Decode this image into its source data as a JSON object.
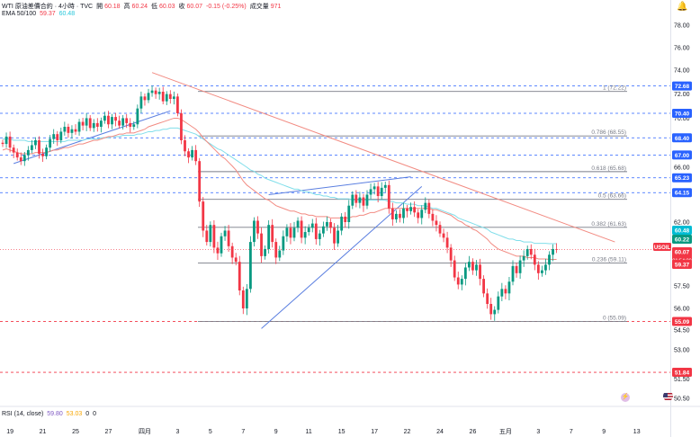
{
  "legend": {
    "symbol": "WTI 原油差價合約 · 4小時 · TVC",
    "open_label": "開",
    "open": "60.18",
    "high_label": "高",
    "high": "60.24",
    "low_label": "低",
    "low": "60.03",
    "close_label": "收",
    "close": "60.07",
    "change": "-0.15 (-0.25%)",
    "volume_label": "成交量",
    "volume": "971",
    "ema_label": "EMA 50/100",
    "ema50": "59.37",
    "ema100": "60.48",
    "rsi_label": "RSI (14, close)",
    "rsi": "59.80",
    "rsi_ma": "53.03",
    "rsi_extra1": "0",
    "rsi_extra2": "0"
  },
  "icons": {
    "bell": "bell-icon",
    "flag": "us-flag-icon",
    "ai": "ai-assistant-icon"
  },
  "colors": {
    "up": "#089981",
    "down": "#f23645",
    "ema50": "#f28b82",
    "ema100": "#80deea",
    "trend": "#5b7fe0",
    "blue_label": "#2962ff",
    "red_label": "#f23645"
  },
  "chart_data": {
    "type": "candlestick",
    "y_axis": {
      "min": 50.5,
      "max": 78.0,
      "ticks": [
        "78.00",
        "76.00",
        "74.00",
        "72.00",
        "70.00",
        "66.00",
        "64.00",
        "62.00",
        "57.50",
        "56.00",
        "54.50",
        "53.00",
        "51.50",
        "50.50"
      ]
    },
    "x_axis": {
      "ticks": [
        {
          "label": "19",
          "i": 2
        },
        {
          "label": "21",
          "i": 11
        },
        {
          "label": "25",
          "i": 20
        },
        {
          "label": "27",
          "i": 29
        },
        {
          "label": "四月",
          "i": 39
        },
        {
          "label": "3",
          "i": 48
        },
        {
          "label": "5",
          "i": 57
        },
        {
          "label": "7",
          "i": 66
        },
        {
          "label": "9",
          "i": 75
        },
        {
          "label": "11",
          "i": 84
        },
        {
          "label": "15",
          "i": 93
        },
        {
          "label": "17",
          "i": 102
        },
        {
          "label": "22",
          "i": 111
        },
        {
          "label": "24",
          "i": 120
        },
        {
          "label": "26",
          "i": 129
        },
        {
          "label": "五月",
          "i": 138
        },
        {
          "label": "3",
          "i": 147
        },
        {
          "label": "7",
          "i": 156
        },
        {
          "label": "9",
          "i": 165
        },
        {
          "label": "13",
          "i": 174
        }
      ]
    },
    "closes": [
      67.9,
      68.5,
      67.6,
      67.2,
      66.8,
      66.5,
      67.0,
      67.4,
      67.8,
      68.2,
      67.1,
      66.9,
      67.6,
      68.3,
      68.7,
      68.2,
      68.9,
      69.3,
      68.8,
      69.1,
      68.9,
      69.7,
      69.4,
      70.0,
      69.2,
      69.6,
      69.3,
      69.8,
      70.2,
      69.5,
      70.1,
      69.8,
      69.4,
      70.0,
      69.6,
      69.3,
      69.5,
      70.8,
      71.8,
      71.5,
      72.1,
      72.3,
      72.0,
      72.2,
      71.4,
      72.0,
      71.6,
      71.8,
      70.4,
      68.2,
      67.3,
      66.8,
      67.4,
      66.5,
      63.5,
      61.4,
      60.6,
      61.8,
      60.2,
      59.8,
      61.0,
      61.4,
      60.3,
      59.5,
      59.2,
      57.2,
      56.0,
      57.3,
      60.6,
      62.1,
      61.2,
      59.6,
      60.1,
      61.8,
      60.6,
      59.5,
      60.0,
      61.0,
      61.6,
      60.9,
      61.6,
      62.1,
      60.9,
      61.3,
      61.6,
      61.9,
      60.8,
      61.2,
      61.7,
      62.0,
      61.6,
      60.5,
      61.4,
      62.4,
      62.0,
      63.2,
      64.0,
      63.4,
      63.8,
      63.2,
      64.0,
      64.4,
      64.6,
      63.9,
      64.5,
      64.7,
      63.0,
      62.2,
      62.6,
      62.3,
      63.0,
      62.8,
      63.1,
      62.7,
      62.3,
      62.9,
      63.4,
      62.6,
      62.1,
      61.8,
      61.2,
      60.9,
      60.2,
      59.3,
      58.1,
      57.6,
      58.0,
      58.8,
      59.2,
      58.6,
      59.0,
      58.0,
      57.0,
      56.3,
      55.6,
      55.9,
      56.8,
      57.3,
      57.0,
      57.8,
      58.9,
      58.4,
      59.3,
      59.6,
      60.1,
      59.7,
      59.0,
      58.4,
      58.6,
      59.0,
      59.7,
      60.1,
      60.07
    ],
    "ema50": [
      67.4,
      67.5,
      67.4,
      67.3,
      67.2,
      67.1,
      67.1,
      67.1,
      67.1,
      67.2,
      67.2,
      67.2,
      67.2,
      67.3,
      67.4,
      67.4,
      67.5,
      67.6,
      67.6,
      67.7,
      67.8,
      67.9,
      67.9,
      68.0,
      68.1,
      68.2,
      68.2,
      68.3,
      68.4,
      68.5,
      68.5,
      68.6,
      68.7,
      68.7,
      68.8,
      68.8,
      68.8,
      68.9,
      69.0,
      69.1,
      69.3,
      69.4,
      69.5,
      69.6,
      69.7,
      69.8,
      69.9,
      70.0,
      70.0,
      69.9,
      69.7,
      69.5,
      69.3,
      69.1,
      68.8,
      68.4,
      68.1,
      67.8,
      67.5,
      67.2,
      66.9,
      66.7,
      66.4,
      66.1,
      65.8,
      65.4,
      65.0,
      64.7,
      64.5,
      64.3,
      64.1,
      63.9,
      63.7,
      63.6,
      63.4,
      63.2,
      63.1,
      63.0,
      62.9,
      62.8,
      62.8,
      62.7,
      62.6,
      62.6,
      62.5,
      62.5,
      62.4,
      62.4,
      62.4,
      62.4,
      62.3,
      62.3,
      62.3,
      62.3,
      62.3,
      62.3,
      62.4,
      62.4,
      62.5,
      62.5,
      62.6,
      62.7,
      62.7,
      62.8,
      62.9,
      63.0,
      63.0,
      63.0,
      63.0,
      63.0,
      63.0,
      63.0,
      63.0,
      63.0,
      63.0,
      63.0,
      63.0,
      63.0,
      62.9,
      62.9,
      62.8,
      62.7,
      62.6,
      62.5,
      62.3,
      62.1,
      62.0,
      61.8,
      61.7,
      61.5,
      61.4,
      61.2,
      61.0,
      60.8,
      60.5,
      60.3,
      60.1,
      60.0,
      59.9,
      59.8,
      59.7,
      59.6,
      59.6,
      59.6,
      59.5,
      59.5,
      59.5,
      59.4,
      59.4,
      59.4,
      59.37,
      59.37,
      59.37
    ],
    "ema100": [
      68.3,
      68.3,
      68.3,
      68.2,
      68.2,
      68.2,
      68.2,
      68.1,
      68.1,
      68.1,
      68.1,
      68.1,
      68.1,
      68.1,
      68.1,
      68.1,
      68.1,
      68.1,
      68.2,
      68.2,
      68.2,
      68.2,
      68.2,
      68.3,
      68.3,
      68.3,
      68.3,
      68.4,
      68.4,
      68.4,
      68.5,
      68.5,
      68.5,
      68.6,
      68.6,
      68.6,
      68.6,
      68.7,
      68.7,
      68.8,
      68.9,
      68.9,
      69.0,
      69.0,
      69.1,
      69.1,
      69.2,
      69.2,
      69.2,
      69.1,
      69.0,
      68.9,
      68.8,
      68.7,
      68.5,
      68.3,
      68.1,
      67.9,
      67.7,
      67.5,
      67.4,
      67.2,
      67.0,
      66.8,
      66.6,
      66.4,
      66.2,
      66.0,
      65.8,
      65.7,
      65.5,
      65.4,
      65.2,
      65.1,
      65.0,
      64.9,
      64.8,
      64.7,
      64.6,
      64.5,
      64.4,
      64.4,
      64.3,
      64.2,
      64.2,
      64.1,
      64.0,
      64.0,
      63.9,
      63.9,
      63.8,
      63.8,
      63.7,
      63.7,
      63.7,
      63.7,
      63.6,
      63.6,
      63.6,
      63.6,
      63.6,
      63.6,
      63.6,
      63.6,
      63.6,
      63.6,
      63.5,
      63.5,
      63.4,
      63.4,
      63.4,
      63.3,
      63.3,
      63.3,
      63.2,
      63.2,
      63.2,
      63.1,
      63.0,
      63.0,
      62.9,
      62.8,
      62.7,
      62.6,
      62.5,
      62.3,
      62.2,
      62.1,
      62.0,
      61.9,
      61.8,
      61.7,
      61.6,
      61.5,
      61.3,
      61.2,
      61.1,
      61.0,
      60.9,
      60.8,
      60.8,
      60.7,
      60.7,
      60.6,
      60.6,
      60.6,
      60.5,
      60.5,
      60.5,
      60.5,
      60.48,
      60.48,
      60.48
    ],
    "h_levels": [
      {
        "value": 72.68,
        "label": "72.68",
        "kind": "blue"
      },
      {
        "value": 70.4,
        "label": "70.40",
        "kind": "blue"
      },
      {
        "value": 68.4,
        "label": "68.40",
        "kind": "blue"
      },
      {
        "value": 67.0,
        "label": "67.00",
        "kind": "blue"
      },
      {
        "value": 65.23,
        "label": "65.23",
        "kind": "blue"
      },
      {
        "value": 64.15,
        "label": "64.15",
        "kind": "blue"
      },
      {
        "value": 55.09,
        "label": "55.09",
        "kind": "red"
      },
      {
        "value": 51.84,
        "label": "51.84",
        "kind": "red"
      }
    ],
    "fib": [
      {
        "value": 72.22,
        "label": "1 (72.22)"
      },
      {
        "value": 68.55,
        "label": "0.786 (68.55)"
      },
      {
        "value": 65.68,
        "label": "0.618 (65.68)"
      },
      {
        "value": 63.66,
        "label": "0.5 (63.66)"
      },
      {
        "value": 61.63,
        "label": "0.382 (61.63)"
      },
      {
        "value": 59.11,
        "label": "0.236 (59.11)"
      },
      {
        "value": 55.09,
        "label": "0 (55.09)"
      }
    ],
    "price_tags": [
      {
        "value": 60.48,
        "label": "60.48",
        "kind": "ema100"
      },
      {
        "value": 60.22,
        "label": "60.22",
        "kind": "green"
      },
      {
        "value": 60.07,
        "label": "60.07",
        "kind": "price"
      },
      {
        "value": 59.37,
        "label": "59.37",
        "kind": "red"
      }
    ],
    "symbol_tag": "USOIL",
    "countdown": "01:54:09",
    "trendlines": [
      {
        "i0": 3,
        "v0": 66.3,
        "i1": 46,
        "v1": 70.6,
        "kind": "blue"
      },
      {
        "i0": 73,
        "v0": 64.0,
        "i1": 112,
        "v1": 65.3,
        "kind": "blue"
      },
      {
        "i0": 71,
        "v0": 54.6,
        "i1": 115,
        "v1": 64.6,
        "kind": "blue"
      },
      {
        "i0": 41,
        "v0": 73.8,
        "i1": 168,
        "v1": 60.6,
        "kind": "red"
      }
    ]
  }
}
